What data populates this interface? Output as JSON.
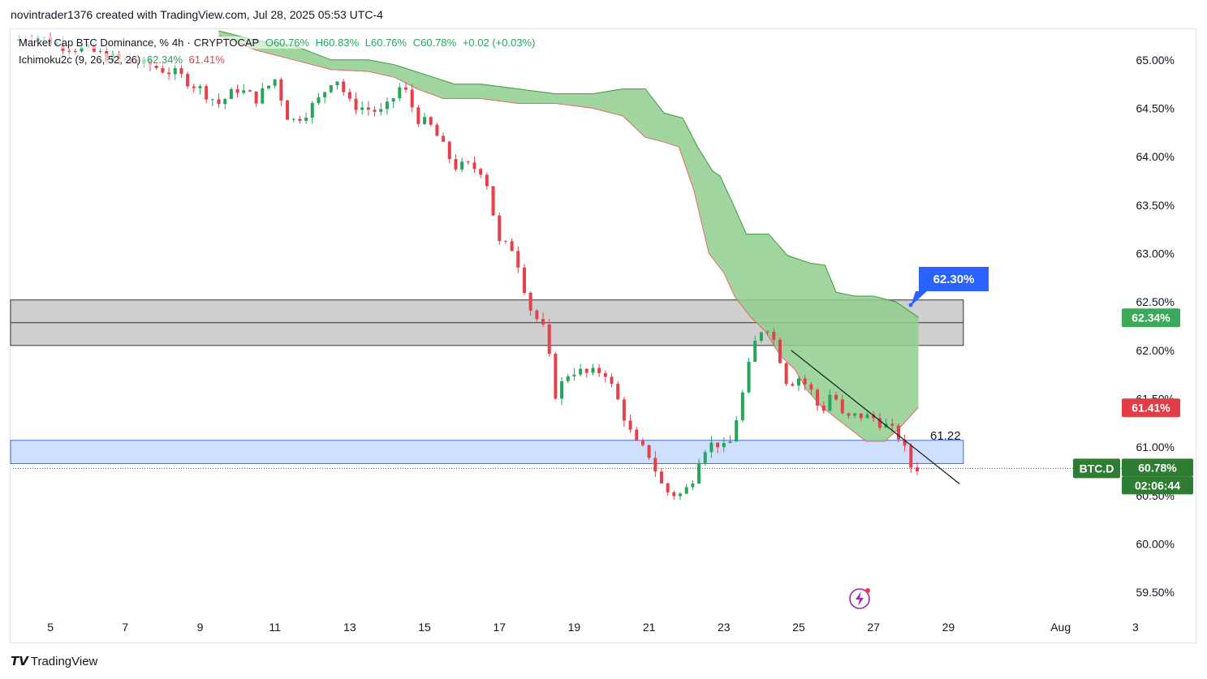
{
  "header": {
    "text": "novintrader1376 created with TradingView.com, Jul 28, 2025 05:53 UTC-4"
  },
  "legend": {
    "symbol_title": "Market Cap BTC Dominance, %",
    "interval": "4h",
    "exchange": "CRYPTOCAP",
    "open": "O60.76%",
    "high": "H60.83%",
    "low": "L60.76%",
    "close": "C60.78%",
    "change": "+0.02 (+0.03%)",
    "indicator_name": "Ichimoku2c (9, 26, 52, 26)",
    "indicator_value_1": "62.34%",
    "indicator_value_2": "61.41%"
  },
  "colors": {
    "bull": "#26a65b",
    "bear": "#e6404b",
    "cloud": "#8fce8f",
    "price_label": "#2e7d32",
    "callout": "#2962ff",
    "resistance_zone": "#cfcfcf",
    "support_zone": "#cfe0ff"
  },
  "chart_data": {
    "type": "candlestick",
    "y_axis": {
      "unit": "%",
      "ylim": [
        59.25,
        65.3
      ],
      "ticks": [
        "65.00%",
        "64.50%",
        "64.00%",
        "63.50%",
        "63.00%",
        "62.50%",
        "62.00%",
        "61.50%",
        "61.00%",
        "60.50%",
        "60.00%",
        "59.50%"
      ],
      "tick_values": [
        65.0,
        64.5,
        64.0,
        63.5,
        63.0,
        62.5,
        62.0,
        61.5,
        61.0,
        60.5,
        60.0,
        59.5
      ]
    },
    "x_axis": {
      "ticks": [
        "5",
        "7",
        "9",
        "11",
        "13",
        "15",
        "17",
        "19",
        "21",
        "23",
        "25",
        "27",
        "29",
        "Aug",
        "3"
      ],
      "tick_days": [
        5,
        7,
        9,
        11,
        13,
        15,
        17,
        19,
        21,
        23,
        25,
        27,
        29,
        32,
        34
      ],
      "xlim_days": [
        4.0,
        35.5
      ]
    },
    "price_path": [
      [
        4.0,
        65.2
      ],
      [
        4.6,
        65.25
      ],
      [
        5.3,
        65.15
      ],
      [
        6.0,
        65.1
      ],
      [
        6.8,
        65.0
      ],
      [
        7.6,
        64.95
      ],
      [
        8.4,
        64.85
      ],
      [
        9.0,
        64.7
      ],
      [
        9.5,
        64.55
      ],
      [
        10.0,
        64.7
      ],
      [
        10.5,
        64.6
      ],
      [
        11.0,
        64.8
      ],
      [
        11.4,
        64.35
      ],
      [
        11.8,
        64.45
      ],
      [
        12.2,
        64.6
      ],
      [
        12.6,
        64.85
      ],
      [
        13.0,
        64.55
      ],
      [
        13.4,
        64.5
      ],
      [
        13.9,
        64.45
      ],
      [
        14.4,
        64.75
      ],
      [
        14.8,
        64.4
      ],
      [
        15.2,
        64.3
      ],
      [
        15.5,
        64.1
      ],
      [
        15.8,
        63.9
      ],
      [
        16.2,
        63.9
      ],
      [
        16.6,
        63.85
      ],
      [
        17.0,
        63.1
      ],
      [
        17.4,
        63.05
      ],
      [
        17.8,
        62.45
      ],
      [
        18.2,
        62.2
      ],
      [
        18.5,
        61.55
      ],
      [
        18.9,
        61.8
      ],
      [
        19.4,
        61.75
      ],
      [
        19.8,
        61.8
      ],
      [
        20.2,
        61.45
      ],
      [
        20.6,
        61.05
      ],
      [
        21.0,
        60.92
      ],
      [
        21.4,
        60.55
      ],
      [
        21.8,
        60.5
      ],
      [
        22.1,
        60.6
      ],
      [
        22.4,
        60.98
      ],
      [
        22.8,
        61.05
      ],
      [
        23.1,
        60.95
      ],
      [
        23.5,
        61.55
      ],
      [
        23.8,
        62.05
      ],
      [
        24.1,
        62.3
      ],
      [
        24.4,
        62.05
      ],
      [
        24.7,
        61.65
      ],
      [
        25.0,
        61.72
      ],
      [
        25.3,
        61.6
      ],
      [
        25.6,
        61.35
      ],
      [
        25.9,
        61.6
      ],
      [
        26.2,
        61.28
      ],
      [
        26.6,
        61.33
      ],
      [
        27.0,
        61.3
      ],
      [
        27.4,
        61.2
      ],
      [
        27.7,
        61.1
      ],
      [
        28.0,
        60.8
      ],
      [
        28.3,
        60.78
      ]
    ],
    "ichimoku_cloud": {
      "upper": [
        [
          9.5,
          65.3
        ],
        [
          10.5,
          65.2
        ],
        [
          11.5,
          65.15
        ],
        [
          12.5,
          65.0
        ],
        [
          13.5,
          65.0
        ],
        [
          14.2,
          64.95
        ],
        [
          15.0,
          64.85
        ],
        [
          15.8,
          64.75
        ],
        [
          16.5,
          64.75
        ],
        [
          17.5,
          64.7
        ],
        [
          18.5,
          64.65
        ],
        [
          19.5,
          64.65
        ],
        [
          20.3,
          64.7
        ],
        [
          20.9,
          64.7
        ],
        [
          21.4,
          64.45
        ],
        [
          21.9,
          64.4
        ],
        [
          22.3,
          64.1
        ],
        [
          22.7,
          63.85
        ],
        [
          22.9,
          63.8
        ],
        [
          23.2,
          63.55
        ],
        [
          23.6,
          63.2
        ],
        [
          24.2,
          63.2
        ],
        [
          24.7,
          62.98
        ],
        [
          25.3,
          62.9
        ],
        [
          25.7,
          62.88
        ],
        [
          26.0,
          62.6
        ],
        [
          26.5,
          62.56
        ],
        [
          27.0,
          62.56
        ],
        [
          27.6,
          62.5
        ],
        [
          28.2,
          62.34
        ]
      ],
      "lower": [
        [
          9.5,
          65.25
        ],
        [
          10.5,
          65.1
        ],
        [
          11.5,
          65.0
        ],
        [
          12.5,
          64.9
        ],
        [
          13.5,
          64.88
        ],
        [
          14.2,
          64.82
        ],
        [
          14.8,
          64.7
        ],
        [
          15.5,
          64.6
        ],
        [
          16.5,
          64.6
        ],
        [
          17.5,
          64.55
        ],
        [
          18.5,
          64.55
        ],
        [
          19.5,
          64.5
        ],
        [
          20.3,
          64.42
        ],
        [
          20.9,
          64.2
        ],
        [
          21.4,
          64.15
        ],
        [
          21.8,
          64.1
        ],
        [
          22.2,
          63.65
        ],
        [
          22.6,
          63.0
        ],
        [
          23.0,
          62.8
        ],
        [
          23.3,
          62.55
        ],
        [
          23.7,
          62.35
        ],
        [
          24.1,
          62.2
        ],
        [
          24.5,
          61.95
        ],
        [
          24.9,
          61.8
        ],
        [
          25.2,
          61.6
        ],
        [
          25.6,
          61.42
        ],
        [
          26.0,
          61.3
        ],
        [
          26.4,
          61.18
        ],
        [
          26.8,
          61.06
        ],
        [
          27.3,
          61.06
        ],
        [
          27.7,
          61.2
        ],
        [
          28.2,
          61.41
        ]
      ]
    },
    "zones": [
      {
        "name": "resistance",
        "y_low": 62.05,
        "y_high": 62.52,
        "x_start": 4.0,
        "x_end": 29.4
      },
      {
        "name": "support",
        "y_low": 60.83,
        "y_high": 61.07,
        "x_start": 4.0,
        "x_end": 29.4
      }
    ],
    "trendline": {
      "start": [
        24.8,
        62.0
      ],
      "end": [
        29.3,
        60.62
      ]
    },
    "current_price_line": 60.78,
    "annotations": {
      "callout": "62.30%",
      "support_label": "61.22"
    },
    "price_labels": {
      "ichimoku_upper": "62.34%",
      "ichimoku_lower": "61.41%",
      "ticker": "BTC.D",
      "last": "60.78%",
      "countdown": "02:06:44"
    }
  },
  "footer": {
    "brand": "TradingView"
  }
}
